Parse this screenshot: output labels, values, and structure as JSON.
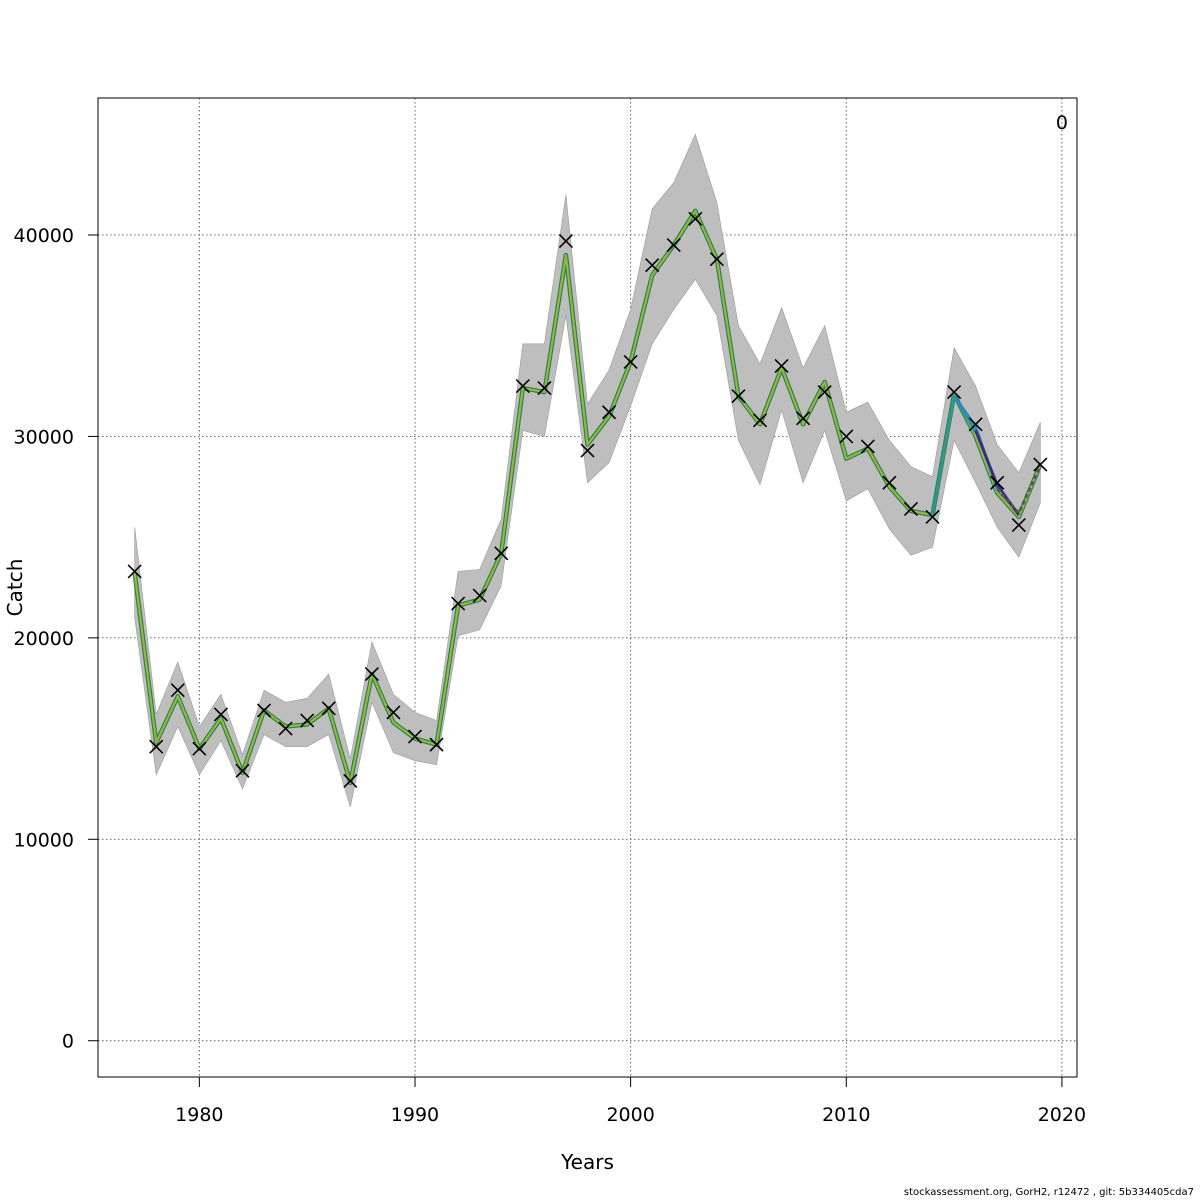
{
  "footer_text": "stockassessment.org, GorH2, r12472 , git: 5b334405cda7",
  "chart_data": {
    "type": "line",
    "title": "",
    "xlabel": "Years",
    "ylabel": "Catch",
    "corner_label": "0",
    "xlim": [
      1975.3,
      2020.7
    ],
    "ylim": [
      -1800,
      46800
    ],
    "xticks": [
      1980,
      1990,
      2000,
      2010,
      2020
    ],
    "yticks": [
      0,
      10000,
      20000,
      30000,
      40000
    ],
    "grid": true,
    "band_color": "#bebebe",
    "x": [
      1977,
      1978,
      1979,
      1980,
      1981,
      1982,
      1983,
      1984,
      1985,
      1986,
      1987,
      1988,
      1989,
      1990,
      1991,
      1992,
      1993,
      1994,
      1995,
      1996,
      1997,
      1998,
      1999,
      2000,
      2001,
      2002,
      2003,
      2004,
      2005,
      2006,
      2007,
      2008,
      2009,
      2010,
      2011,
      2012,
      2013,
      2014,
      2015,
      2016,
      2017,
      2018,
      2019
    ],
    "fitted": [
      23200,
      14800,
      17100,
      14500,
      16000,
      13300,
      16400,
      15600,
      15700,
      16500,
      12800,
      18200,
      15800,
      15000,
      14700,
      21600,
      21900,
      24200,
      32400,
      32200,
      39000,
      29600,
      31000,
      33700,
      38000,
      39500,
      41200,
      38800,
      32000,
      30600,
      33400,
      30600,
      32700,
      28900,
      29400,
      27500,
      26300,
      26100,
      32100,
      30000,
      27200,
      26000,
      28600
    ],
    "upper": [
      25500,
      16200,
      18800,
      15600,
      17200,
      14200,
      17400,
      16800,
      17000,
      18200,
      14000,
      19800,
      17200,
      16300,
      15900,
      23300,
      23400,
      25900,
      34600,
      34600,
      42000,
      31600,
      33300,
      36300,
      41300,
      42600,
      45000,
      41600,
      35500,
      33600,
      36400,
      33400,
      35500,
      31200,
      31700,
      29800,
      28500,
      28000,
      34400,
      32500,
      29600,
      28200,
      30700
    ],
    "lower": [
      21000,
      13200,
      15600,
      13200,
      14900,
      12500,
      15200,
      14600,
      14600,
      15200,
      11600,
      16800,
      14300,
      13900,
      13700,
      20100,
      20400,
      22600,
      30300,
      30000,
      36000,
      27700,
      28700,
      31500,
      34600,
      36300,
      37800,
      36000,
      29800,
      27600,
      31300,
      27700,
      30300,
      26800,
      27400,
      25400,
      24100,
      24500,
      29800,
      27700,
      25500,
      24000,
      26700
    ],
    "observed": [
      23300,
      14600,
      17400,
      14500,
      16200,
      13400,
      16400,
      15500,
      15900,
      16500,
      12900,
      18200,
      16300,
      15100,
      14700,
      21700,
      22100,
      24200,
      32500,
      32400,
      39700,
      29300,
      31200,
      33700,
      38500,
      39500,
      40800,
      38800,
      32000,
      30800,
      33500,
      30900,
      32200,
      30000,
      29500,
      27700,
      26400,
      26000,
      32200,
      30600,
      27700,
      25600,
      28600
    ],
    "peel_series": [
      {
        "start_year": 2014,
        "years": [
          2014,
          2015,
          2016
        ],
        "values": [
          26100,
          32000,
          30200
        ],
        "color": "#2a9a8f"
      },
      {
        "start_year": 2015,
        "years": [
          2015,
          2016,
          2017
        ],
        "values": [
          32000,
          30500,
          27400
        ],
        "color": "#2f86c4"
      },
      {
        "start_year": 2016,
        "years": [
          2016,
          2017,
          2018
        ],
        "values": [
          30300,
          27600,
          26100
        ],
        "color": "#3c2a82"
      },
      {
        "start_year": 2017,
        "years": [
          2017,
          2018,
          2019
        ],
        "values": [
          27400,
          26200,
          28600
        ],
        "color": "#555555",
        "dashed": true
      }
    ],
    "fitted_outer_color": "#2e7d4f",
    "fitted_inner_color": "#8fbd3a"
  }
}
